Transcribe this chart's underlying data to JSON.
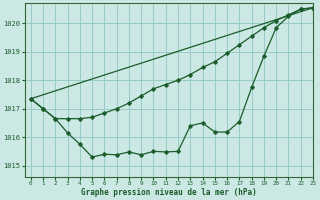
{
  "bg_color": "#cce8e4",
  "grid_color": "#99ccc7",
  "line_color": "#1a5c2a",
  "spine_color": "#336633",
  "title": "Graphe pression niveau de la mer (hPa)",
  "xlim": [
    -0.5,
    23
  ],
  "ylim": [
    1014.6,
    1020.7
  ],
  "yticks": [
    1015,
    1016,
    1017,
    1018,
    1019,
    1020
  ],
  "xticks": [
    0,
    1,
    2,
    3,
    4,
    5,
    6,
    7,
    8,
    9,
    10,
    11,
    12,
    13,
    14,
    15,
    16,
    17,
    18,
    19,
    20,
    21,
    22,
    23
  ],
  "line1_x": [
    0,
    1,
    2,
    3,
    4,
    5,
    6,
    7,
    8,
    9,
    10,
    11,
    12,
    13,
    14,
    15,
    16,
    17,
    18,
    19,
    20,
    21,
    22,
    23
  ],
  "line1_y": [
    1017.35,
    1017.0,
    1016.65,
    1016.15,
    1015.75,
    1015.3,
    1015.4,
    1015.38,
    1015.48,
    1015.38,
    1015.5,
    1015.48,
    1015.5,
    1016.4,
    1016.5,
    1016.18,
    1016.18,
    1016.55,
    1017.75,
    1018.85,
    1019.85,
    1020.25,
    1020.5,
    1020.55
  ],
  "line2_x": [
    0,
    1,
    2,
    3,
    4,
    5,
    6,
    7,
    8,
    9,
    10,
    11,
    12,
    13,
    14,
    15,
    16,
    17,
    18,
    19,
    20,
    21,
    22,
    23
  ],
  "line2_y": [
    1017.35,
    1017.0,
    1016.65,
    1016.65,
    1016.65,
    1016.7,
    1016.85,
    1017.0,
    1017.2,
    1017.45,
    1017.7,
    1017.85,
    1018.0,
    1018.2,
    1018.45,
    1018.65,
    1018.95,
    1019.25,
    1019.55,
    1019.85,
    1020.1,
    1020.3,
    1020.5,
    1020.55
  ],
  "line3_x": [
    0,
    23
  ],
  "line3_y": [
    1017.35,
    1020.55
  ]
}
